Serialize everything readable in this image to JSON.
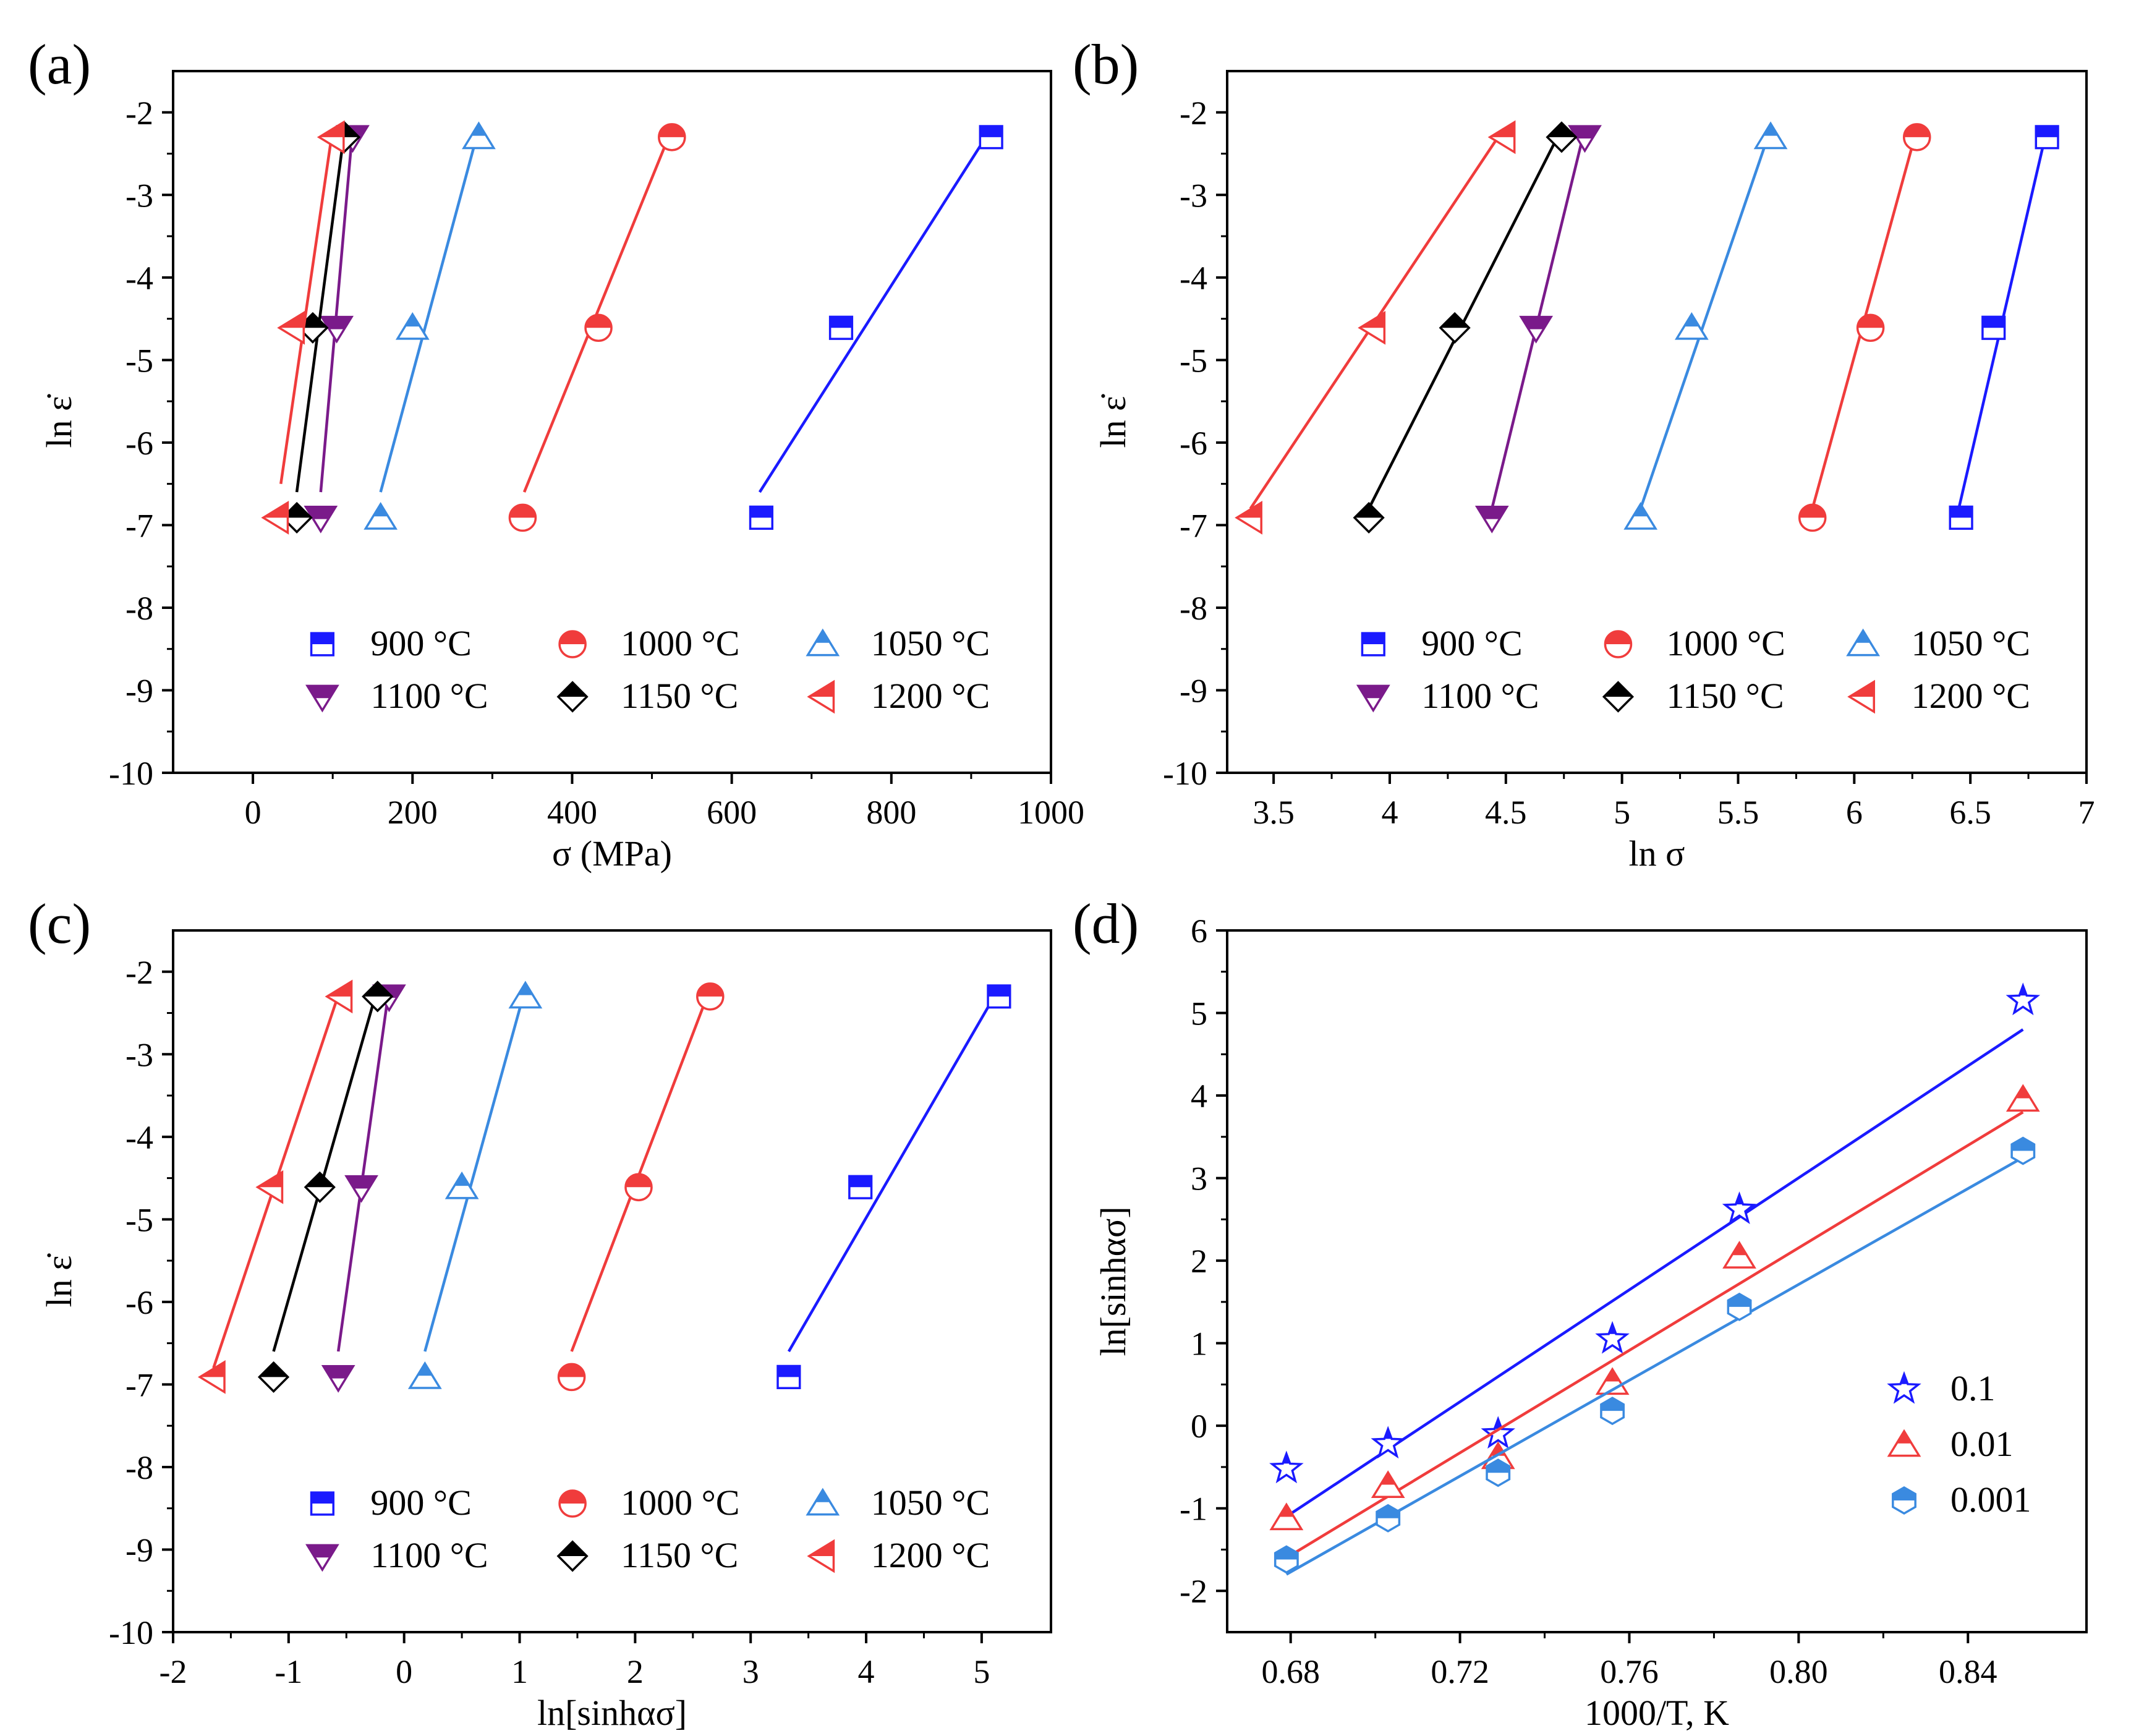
{
  "figure": {
    "panels": [
      "(a)",
      "(b)",
      "(c)",
      "(d)"
    ]
  },
  "colors": {
    "900": "#1a1aff",
    "1000": "#f03c3c",
    "1050": "#3a8ae0",
    "1100": "#7a1a8a",
    "1150": "#000000",
    "1200": "#f03c3c",
    "r0.1": "#1a1aff",
    "r0.01": "#f03c3c",
    "r0.001": "#3a8ae0"
  },
  "chart_data": [
    {
      "id": "a",
      "panel_label": "(a)",
      "type": "scatter",
      "xlabel": "σ (MPa)",
      "ylabel": "ln ε̇",
      "xlim": [
        -100,
        1000
      ],
      "ylim": [
        -10,
        -1.5
      ],
      "xticks": [
        0,
        200,
        400,
        600,
        800,
        1000
      ],
      "yticks": [
        -2,
        -3,
        -4,
        -5,
        -6,
        -7,
        -8,
        -9,
        -10
      ],
      "legend_loc": "lower-center",
      "series": [
        {
          "name": "900 °C",
          "key": "900",
          "marker": "square",
          "x": [
            637,
            737,
            925
          ],
          "y": [
            -6.91,
            -4.61,
            -2.3
          ],
          "fit": [
            [
              635,
              -6.6
            ],
            [
              925,
              -2.2
            ]
          ]
        },
        {
          "name": "1000 °C",
          "key": "1000",
          "marker": "circle",
          "x": [
            338,
            433,
            525
          ],
          "y": [
            -6.91,
            -4.61,
            -2.3
          ],
          "fit": [
            [
              340,
              -6.6
            ],
            [
              525,
              -2.2
            ]
          ]
        },
        {
          "name": "1050 °C",
          "key": "1050",
          "marker": "triangle",
          "x": [
            160,
            200,
            283
          ],
          "y": [
            -6.91,
            -4.61,
            -2.3
          ],
          "fit": [
            [
              160,
              -6.6
            ],
            [
              283,
              -2.2
            ]
          ]
        },
        {
          "name": "1100 °C",
          "key": "1100",
          "marker": "tri-down",
          "x": [
            85,
            105,
            125
          ],
          "y": [
            -6.91,
            -4.61,
            -2.3
          ],
          "fit": [
            [
              85,
              -6.6
            ],
            [
              125,
              -2.2
            ]
          ]
        },
        {
          "name": "1150 °C",
          "key": "1150",
          "marker": "diamond",
          "x": [
            55,
            75,
            115
          ],
          "y": [
            -6.91,
            -4.61,
            -2.3
          ],
          "fit": [
            [
              55,
              -6.6
            ],
            [
              115,
              -2.2
            ]
          ]
        },
        {
          "name": "1200 °C",
          "key": "1200",
          "marker": "tri-left",
          "x": [
            30,
            50,
            100
          ],
          "y": [
            -6.91,
            -4.61,
            -2.3
          ],
          "fit": [
            [
              35,
              -6.5
            ],
            [
              100,
              -2.2
            ]
          ]
        }
      ]
    },
    {
      "id": "b",
      "panel_label": "(b)",
      "type": "scatter",
      "xlabel": "ln σ",
      "ylabel": "ln ε̇",
      "xlim": [
        3.3,
        7.0
      ],
      "ylim": [
        -10,
        -1.5
      ],
      "xticks": [
        3.5,
        4.0,
        4.5,
        5.0,
        5.5,
        6.0,
        6.5,
        7.0
      ],
      "yticks": [
        -2,
        -3,
        -4,
        -5,
        -6,
        -7,
        -8,
        -9,
        -10
      ],
      "legend_loc": "lower-center",
      "series": [
        {
          "name": "900 °C",
          "key": "900",
          "marker": "square",
          "x": [
            6.46,
            6.6,
            6.83
          ],
          "y": [
            -6.91,
            -4.61,
            -2.3
          ],
          "fit": [
            [
              6.45,
              -6.8
            ],
            [
              6.83,
              -2.2
            ]
          ]
        },
        {
          "name": "1000 °C",
          "key": "1000",
          "marker": "circle",
          "x": [
            5.82,
            6.07,
            6.27
          ],
          "y": [
            -6.91,
            -4.61,
            -2.3
          ],
          "fit": [
            [
              5.82,
              -6.8
            ],
            [
              6.27,
              -2.2
            ]
          ]
        },
        {
          "name": "1050 °C",
          "key": "1050",
          "marker": "triangle",
          "x": [
            5.08,
            5.3,
            5.64
          ],
          "y": [
            -6.91,
            -4.61,
            -2.3
          ],
          "fit": [
            [
              5.08,
              -6.8
            ],
            [
              5.64,
              -2.2
            ]
          ]
        },
        {
          "name": "1100 °C",
          "key": "1100",
          "marker": "tri-down",
          "x": [
            4.44,
            4.63,
            4.84
          ],
          "y": [
            -6.91,
            -4.61,
            -2.3
          ],
          "fit": [
            [
              4.44,
              -6.8
            ],
            [
              4.84,
              -2.2
            ]
          ]
        },
        {
          "name": "1150 °C",
          "key": "1150",
          "marker": "diamond",
          "x": [
            3.91,
            4.28,
            4.74
          ],
          "y": [
            -6.91,
            -4.61,
            -2.3
          ],
          "fit": [
            [
              3.91,
              -6.8
            ],
            [
              4.74,
              -2.2
            ]
          ]
        },
        {
          "name": "1200 °C",
          "key": "1200",
          "marker": "tri-left",
          "x": [
            3.4,
            3.93,
            4.49
          ],
          "y": [
            -6.91,
            -4.61,
            -2.3
          ],
          "fit": [
            [
              3.4,
              -6.8
            ],
            [
              4.49,
              -2.2
            ]
          ]
        }
      ]
    },
    {
      "id": "c",
      "panel_label": "(c)",
      "type": "scatter",
      "xlabel": "ln[sinhασ]",
      "ylabel": "ln ε̇",
      "xlim": [
        -2,
        5.6
      ],
      "ylim": [
        -10,
        -1.5
      ],
      "xticks": [
        -2,
        -1,
        0,
        1,
        2,
        3,
        4,
        5
      ],
      "yticks": [
        -2,
        -3,
        -4,
        -5,
        -6,
        -7,
        -8,
        -9,
        -10
      ],
      "legend_loc": "lower-center",
      "series": [
        {
          "name": "900 °C",
          "key": "900",
          "marker": "square",
          "x": [
            3.33,
            3.95,
            5.15
          ],
          "y": [
            -6.91,
            -4.61,
            -2.3
          ],
          "fit": [
            [
              3.33,
              -6.6
            ],
            [
              5.15,
              -2.2
            ]
          ]
        },
        {
          "name": "1000 °C",
          "key": "1000",
          "marker": "circle",
          "x": [
            1.45,
            2.03,
            2.65
          ],
          "y": [
            -6.91,
            -4.61,
            -2.3
          ],
          "fit": [
            [
              1.45,
              -6.6
            ],
            [
              2.65,
              -2.2
            ]
          ]
        },
        {
          "name": "1050 °C",
          "key": "1050",
          "marker": "triangle",
          "x": [
            0.18,
            0.5,
            1.05
          ],
          "y": [
            -6.91,
            -4.61,
            -2.3
          ],
          "fit": [
            [
              0.18,
              -6.6
            ],
            [
              1.05,
              -2.2
            ]
          ]
        },
        {
          "name": "1100 °C",
          "key": "1100",
          "marker": "tri-down",
          "x": [
            -0.57,
            -0.37,
            -0.13
          ],
          "y": [
            -6.91,
            -4.61,
            -2.3
          ],
          "fit": [
            [
              -0.57,
              -6.6
            ],
            [
              -0.13,
              -2.2
            ]
          ]
        },
        {
          "name": "1150 °C",
          "key": "1150",
          "marker": "diamond",
          "x": [
            -1.13,
            -0.73,
            -0.23
          ],
          "y": [
            -6.91,
            -4.61,
            -2.3
          ],
          "fit": [
            [
              -1.13,
              -6.6
            ],
            [
              -0.23,
              -2.2
            ]
          ]
        },
        {
          "name": "1200 °C",
          "key": "1200",
          "marker": "tri-left",
          "x": [
            -1.65,
            -1.15,
            -0.55
          ],
          "y": [
            -6.91,
            -4.61,
            -2.3
          ],
          "fit": [
            [
              -1.65,
              -6.8
            ],
            [
              -0.55,
              -2.2
            ]
          ]
        }
      ]
    },
    {
      "id": "d",
      "panel_label": "(d)",
      "type": "scatter",
      "xlabel": "1000/T, K",
      "ylabel": "ln[sinhασ]",
      "xlim": [
        0.665,
        0.868
      ],
      "ylim": [
        -2.5,
        6
      ],
      "xticks": [
        0.68,
        0.72,
        0.76,
        0.8,
        0.84
      ],
      "xtick_labels": [
        "0.68",
        "0.72",
        "0.76",
        "0.80",
        "0.84"
      ],
      "yticks": [
        6,
        5,
        4,
        3,
        2,
        1,
        0,
        -1,
        -2
      ],
      "legend_loc": "center-right",
      "series": [
        {
          "name": "0.1",
          "key": "r0.1",
          "marker": "star",
          "x": [
            0.679,
            0.703,
            0.729,
            0.756,
            0.786,
            0.853
          ],
          "y": [
            -0.52,
            -0.22,
            -0.1,
            1.05,
            2.62,
            5.15
          ],
          "fit": [
            [
              0.679,
              -1.1
            ],
            [
              0.853,
              4.8
            ]
          ]
        },
        {
          "name": "0.01",
          "key": "r0.01",
          "marker": "triangle",
          "x": [
            0.679,
            0.703,
            0.729,
            0.756,
            0.786,
            0.853
          ],
          "y": [
            -1.12,
            -0.73,
            -0.38,
            0.52,
            2.05,
            3.95
          ],
          "fit": [
            [
              0.679,
              -1.6
            ],
            [
              0.853,
              3.8
            ]
          ]
        },
        {
          "name": "0.001",
          "key": "r0.001",
          "marker": "hexagon",
          "x": [
            0.679,
            0.703,
            0.729,
            0.756,
            0.786,
            0.853
          ],
          "y": [
            -1.62,
            -1.12,
            -0.57,
            0.18,
            1.44,
            3.33
          ],
          "fit": [
            [
              0.679,
              -1.8
            ],
            [
              0.853,
              3.25
            ]
          ]
        }
      ]
    }
  ]
}
